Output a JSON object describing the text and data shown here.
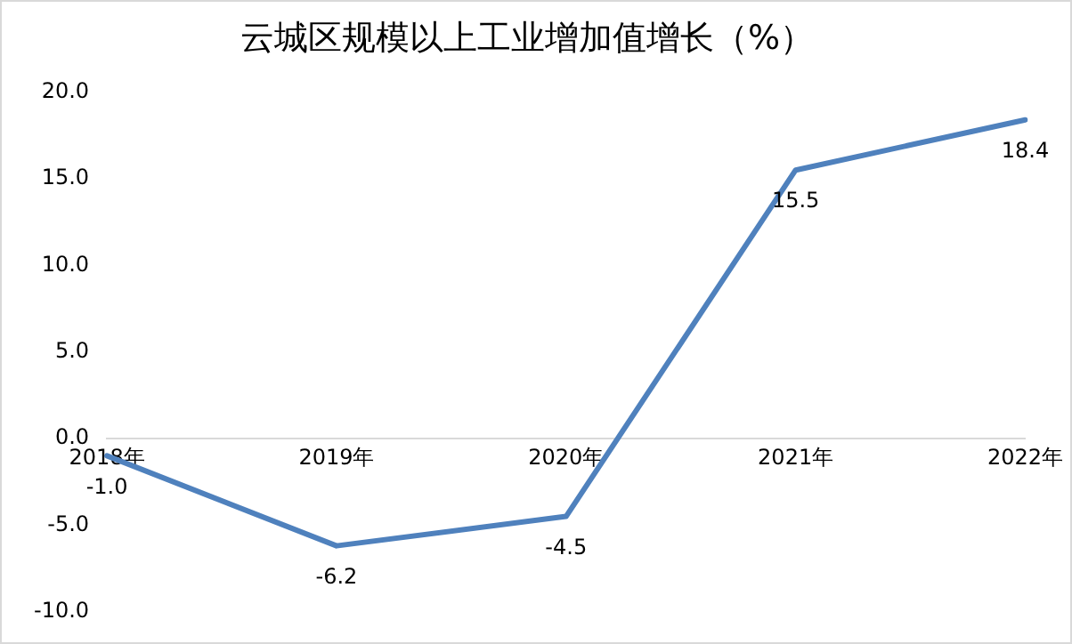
{
  "chart_data": {
    "type": "line",
    "title": "云城区规模以上工业增加值增长（%）",
    "categories": [
      "2018年",
      "2019年",
      "2020年",
      "2021年",
      "2022年"
    ],
    "series": [
      {
        "color": "#4f81bd",
        "values": [
          -1.0,
          -6.2,
          -4.5,
          15.5,
          18.4
        ]
      }
    ],
    "value_labels": [
      "-1.0",
      "-6.2",
      "-4.5",
      "15.5",
      "18.4"
    ],
    "ylim": [
      -10,
      20
    ],
    "yticks": [
      {
        "value": -10,
        "label": "-10.0"
      },
      {
        "value": -5,
        "label": "-5.0"
      },
      {
        "value": 0,
        "label": "0.0"
      },
      {
        "value": 5,
        "label": "5.0"
      },
      {
        "value": 10,
        "label": "10.0"
      },
      {
        "value": 15,
        "label": "15.0"
      },
      {
        "value": 20,
        "label": "20.0"
      }
    ],
    "grid": false,
    "legend": false,
    "marker": "none",
    "line_style": "solid"
  }
}
